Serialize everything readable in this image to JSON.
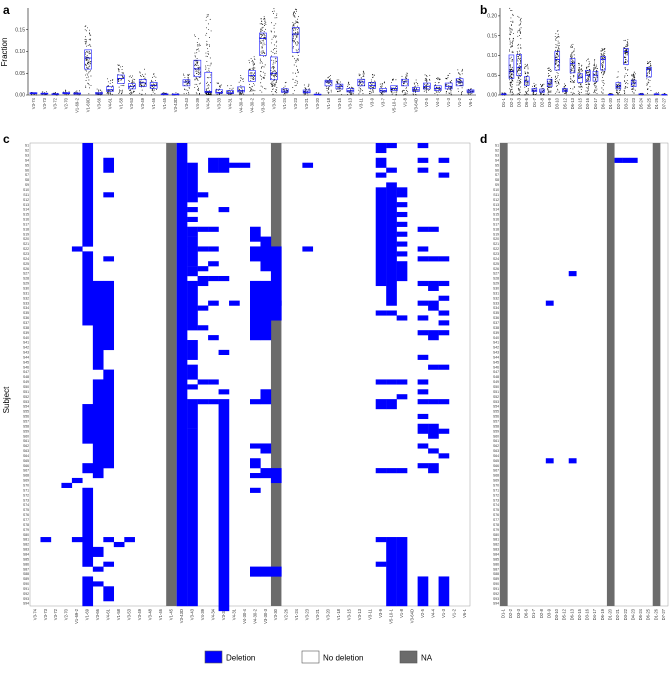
{
  "chart_data": [
    {
      "panel": "a",
      "type": "scatter",
      "ylabel": "Fraction",
      "ylim": [
        0,
        0.2
      ],
      "yticks": [
        "0.00",
        "0.05",
        "0.10",
        "0.15"
      ],
      "categories": [
        "V3-74",
        "V3-73",
        "V3-72",
        "V2-70",
        "V1-69-2",
        "V1-69D",
        "V3-66",
        "V4-61",
        "V1-58",
        "V3-53",
        "V3-49",
        "V1-46",
        "V1-45",
        "V3-43D",
        "V3-43",
        "V4-39",
        "V4-34",
        "V3-33",
        "V4-31",
        "V4-30-4",
        "V4-30-2",
        "V3-30-3",
        "V3-30",
        "V1-24",
        "V3-23",
        "V3-21",
        "V3-20",
        "V1-18",
        "V3-15",
        "V3-13",
        "V3-11",
        "V3-9",
        "V3-7",
        "V5-10-1",
        "V1-8",
        "V3-64D",
        "V2-5",
        "V4-4",
        "V1-3",
        "V1-2",
        "V6-1"
      ],
      "highlight_categories": [
        "V3-43",
        "V3-20"
      ],
      "medians": [
        0.004,
        0.003,
        0.002,
        0.004,
        0.003,
        0.085,
        0.003,
        0.012,
        0.038,
        0.02,
        0.028,
        0.022,
        0.002,
        0.001,
        0.03,
        0.06,
        0.008,
        0.006,
        0.005,
        0.01,
        0.045,
        0.13,
        0.05,
        0.009,
        0.14,
        0.007,
        0.001,
        0.03,
        0.02,
        0.01,
        0.03,
        0.022,
        0.01,
        0.015,
        0.03,
        0.012,
        0.02,
        0.015,
        0.02,
        0.03,
        0.009
      ],
      "maxima": [
        0.01,
        0.008,
        0.006,
        0.012,
        0.01,
        0.16,
        0.015,
        0.04,
        0.07,
        0.045,
        0.06,
        0.05,
        0.005,
        0.006,
        0.05,
        0.14,
        0.185,
        0.03,
        0.025,
        0.045,
        0.09,
        0.18,
        0.2,
        0.03,
        0.2,
        0.025,
        0.005,
        0.045,
        0.04,
        0.03,
        0.055,
        0.05,
        0.03,
        0.04,
        0.055,
        0.035,
        0.05,
        0.04,
        0.05,
        0.06,
        0.02
      ]
    },
    {
      "panel": "b",
      "type": "scatter",
      "ylim": [
        0,
        0.22
      ],
      "yticks": [
        "0.00",
        "0.05",
        "0.10",
        "0.15",
        "0.20"
      ],
      "categories": [
        "D1-1",
        "D2-2",
        "D3-3",
        "D6-6",
        "D1-7",
        "D2-8",
        "D3-9",
        "D3-10",
        "D5-12",
        "D6-13",
        "D2-15",
        "D3-16",
        "D4-17",
        "D6-19",
        "D1-20",
        "D2-21",
        "D3-22",
        "D4-23",
        "D5-24",
        "D6-25",
        "D1-26",
        "D7-27"
      ],
      "medians": [
        0.002,
        0.06,
        0.07,
        0.035,
        0.012,
        0.01,
        0.03,
        0.09,
        0.012,
        0.08,
        0.045,
        0.05,
        0.05,
        0.09,
        0.001,
        0.022,
        0.11,
        0.03,
        0.002,
        0.065,
        0.002,
        0.001
      ],
      "maxima": [
        0.006,
        0.225,
        0.2,
        0.08,
        0.03,
        0.03,
        0.07,
        0.17,
        0.03,
        0.13,
        0.08,
        0.1,
        0.09,
        0.12,
        0.004,
        0.06,
        0.14,
        0.06,
        0.006,
        0.085,
        0.006,
        0.004
      ]
    },
    {
      "panel": "c",
      "type": "heatmap",
      "ylabel": "Subject",
      "categories": [
        "V3-74",
        "V3-73",
        "V3-72",
        "V2-70",
        "V1-69-2",
        "V1-69",
        "V3-66",
        "V4-61",
        "V1-58",
        "V3-53",
        "V3-49",
        "V3-48",
        "V1-46",
        "V1-45",
        "V3-43D",
        "V3-43",
        "V4-39",
        "V4-34",
        "V3-33",
        "V4-31",
        "V4-30-4",
        "V4-30-2",
        "V3-30-3",
        "V3-30",
        "V2-26",
        "V1-24",
        "V3-23",
        "V3-21",
        "V3-20",
        "V1-18",
        "V3-15",
        "V3-13",
        "V3-11",
        "V3-9",
        "V5-10-1",
        "V1-8",
        "V3-64D",
        "V2-5",
        "V4-4",
        "V1-3",
        "V1-2",
        "V6-1"
      ],
      "na_columns": [
        "V1-45",
        "V3-30"
      ],
      "deletion_runs": [
        [
          5,
          1,
          21
        ],
        [
          5,
          23,
          15
        ],
        [
          5,
          54,
          8
        ],
        [
          5,
          66,
          2
        ],
        [
          5,
          71,
          16
        ],
        [
          5,
          89,
          6
        ],
        [
          4,
          22,
          1
        ],
        [
          4,
          69,
          1
        ],
        [
          4,
          81,
          1
        ],
        [
          3,
          70,
          1
        ],
        [
          7,
          4,
          3
        ],
        [
          7,
          11,
          1
        ],
        [
          7,
          24,
          1
        ],
        [
          7,
          29,
          14
        ],
        [
          7,
          47,
          20
        ],
        [
          7,
          81,
          1
        ],
        [
          7,
          86,
          1
        ],
        [
          7,
          91,
          3
        ],
        [
          6,
          29,
          18
        ],
        [
          6,
          49,
          20
        ],
        [
          6,
          83,
          2
        ],
        [
          6,
          87,
          1
        ],
        [
          6,
          90,
          1
        ],
        [
          9,
          81,
          1
        ],
        [
          8,
          82,
          1
        ],
        [
          1,
          81,
          1
        ],
        [
          14,
          1,
          94
        ],
        [
          15,
          5,
          8
        ],
        [
          15,
          14,
          1
        ],
        [
          15,
          16,
          1
        ],
        [
          15,
          18,
          2
        ],
        [
          15,
          20,
          2
        ],
        [
          15,
          22,
          4
        ],
        [
          15,
          26,
          2
        ],
        [
          15,
          29,
          10
        ],
        [
          15,
          41,
          4
        ],
        [
          15,
          46,
          3
        ],
        [
          15,
          50,
          1
        ],
        [
          15,
          53,
          6
        ],
        [
          15,
          59,
          36
        ],
        [
          16,
          11,
          1
        ],
        [
          16,
          18,
          1
        ],
        [
          16,
          22,
          1
        ],
        [
          16,
          26,
          1
        ],
        [
          16,
          28,
          2
        ],
        [
          16,
          34,
          1
        ],
        [
          16,
          38,
          1
        ],
        [
          16,
          49,
          1
        ],
        [
          16,
          53,
          1
        ],
        [
          17,
          4,
          3
        ],
        [
          17,
          18,
          1
        ],
        [
          17,
          22,
          1
        ],
        [
          17,
          25,
          1
        ],
        [
          17,
          28,
          1
        ],
        [
          17,
          33,
          1
        ],
        [
          17,
          40,
          1
        ],
        [
          17,
          49,
          1
        ],
        [
          17,
          53,
          1
        ],
        [
          18,
          4,
          3
        ],
        [
          18,
          14,
          1
        ],
        [
          18,
          28,
          1
        ],
        [
          18,
          43,
          1
        ],
        [
          18,
          51,
          1
        ],
        [
          18,
          53,
          43
        ],
        [
          19,
          5,
          1
        ],
        [
          19,
          33,
          1
        ],
        [
          20,
          5,
          1
        ],
        [
          21,
          18,
          3
        ],
        [
          21,
          22,
          3
        ],
        [
          21,
          29,
          12
        ],
        [
          21,
          53,
          1
        ],
        [
          21,
          62,
          1
        ],
        [
          21,
          65,
          2
        ],
        [
          21,
          68,
          1
        ],
        [
          21,
          71,
          1
        ],
        [
          21,
          87,
          2
        ],
        [
          22,
          20,
          2
        ],
        [
          22,
          22,
          5
        ],
        [
          22,
          29,
          12
        ],
        [
          22,
          51,
          3
        ],
        [
          22,
          62,
          2
        ],
        [
          22,
          67,
          2
        ],
        [
          22,
          87,
          2
        ],
        [
          23,
          29,
          8
        ],
        [
          23,
          22,
          7
        ],
        [
          23,
          67,
          3
        ],
        [
          23,
          87,
          2
        ],
        [
          23,
          33,
          1
        ],
        [
          26,
          5,
          1
        ],
        [
          26,
          22,
          1
        ],
        [
          33,
          1,
          2
        ],
        [
          33,
          4,
          2
        ],
        [
          33,
          7,
          1
        ],
        [
          33,
          10,
          20
        ],
        [
          33,
          35,
          1
        ],
        [
          33,
          49,
          1
        ],
        [
          33,
          53,
          2
        ],
        [
          33,
          67,
          1
        ],
        [
          33,
          81,
          1
        ],
        [
          33,
          86,
          1
        ],
        [
          34,
          1,
          1
        ],
        [
          34,
          6,
          1
        ],
        [
          34,
          9,
          25
        ],
        [
          34,
          35,
          1
        ],
        [
          34,
          49,
          1
        ],
        [
          34,
          53,
          2
        ],
        [
          34,
          67,
          1
        ],
        [
          34,
          81,
          14
        ],
        [
          35,
          10,
          2
        ],
        [
          35,
          13,
          1
        ],
        [
          35,
          15,
          1
        ],
        [
          35,
          17,
          1
        ],
        [
          35,
          19,
          1
        ],
        [
          35,
          21,
          1
        ],
        [
          35,
          23,
          1
        ],
        [
          35,
          25,
          4
        ],
        [
          35,
          36,
          1
        ],
        [
          35,
          49,
          1
        ],
        [
          35,
          52,
          1
        ],
        [
          35,
          67,
          1
        ],
        [
          35,
          81,
          14
        ],
        [
          37,
          1,
          1
        ],
        [
          37,
          4,
          1
        ],
        [
          37,
          6,
          1
        ],
        [
          37,
          18,
          1
        ],
        [
          37,
          22,
          1
        ],
        [
          37,
          24,
          1
        ],
        [
          37,
          29,
          1
        ],
        [
          37,
          33,
          1
        ],
        [
          37,
          36,
          1
        ],
        [
          37,
          39,
          1
        ],
        [
          37,
          44,
          1
        ],
        [
          37,
          49,
          1
        ],
        [
          37,
          51,
          1
        ],
        [
          37,
          53,
          1
        ],
        [
          37,
          56,
          1
        ],
        [
          37,
          58,
          2
        ],
        [
          37,
          62,
          1
        ],
        [
          37,
          66,
          1
        ],
        [
          37,
          89,
          6
        ],
        [
          38,
          18,
          1
        ],
        [
          38,
          24,
          1
        ],
        [
          38,
          29,
          2
        ],
        [
          38,
          33,
          2
        ],
        [
          38,
          39,
          2
        ],
        [
          38,
          46,
          1
        ],
        [
          38,
          53,
          1
        ],
        [
          38,
          58,
          3
        ],
        [
          38,
          63,
          1
        ],
        [
          38,
          66,
          2
        ],
        [
          39,
          4,
          1
        ],
        [
          39,
          7,
          1
        ],
        [
          39,
          24,
          1
        ],
        [
          39,
          29,
          1
        ],
        [
          39,
          32,
          1
        ],
        [
          39,
          35,
          1
        ],
        [
          39,
          37,
          1
        ],
        [
          39,
          39,
          1
        ],
        [
          39,
          46,
          1
        ],
        [
          39,
          53,
          1
        ],
        [
          39,
          59,
          1
        ],
        [
          39,
          64,
          1
        ],
        [
          39,
          89,
          6
        ]
      ]
    },
    {
      "panel": "d",
      "type": "heatmap",
      "categories": [
        "D1-1",
        "D2-2",
        "D3-3",
        "D6-6",
        "D1-7",
        "D2-8",
        "D3-9",
        "D3-10",
        "D5-12",
        "D6-13",
        "D2-15",
        "D3-16",
        "D4-17",
        "D6-19",
        "D1-20",
        "D2-21",
        "D3-22",
        "D4-23",
        "D5-24",
        "D6-25",
        "D1-26",
        "D7-27"
      ],
      "na_columns": [
        "D1-1",
        "D1-20",
        "D1-26"
      ],
      "deletion_runs": [
        [
          15,
          4,
          1
        ],
        [
          16,
          4,
          1
        ],
        [
          17,
          4,
          1
        ],
        [
          6,
          33,
          1
        ],
        [
          6,
          65,
          1
        ],
        [
          9,
          27,
          1
        ],
        [
          9,
          65,
          1
        ]
      ]
    }
  ],
  "subjects_count": 94,
  "subject_prefix": "S",
  "legend": [
    {
      "label": "Deletion",
      "color": "#0000ff"
    },
    {
      "label": "No deletion",
      "color": "#ffffff"
    },
    {
      "label": "NA",
      "color": "#6b6b6b"
    }
  ],
  "panel_labels": [
    "a",
    "b",
    "c",
    "d"
  ]
}
